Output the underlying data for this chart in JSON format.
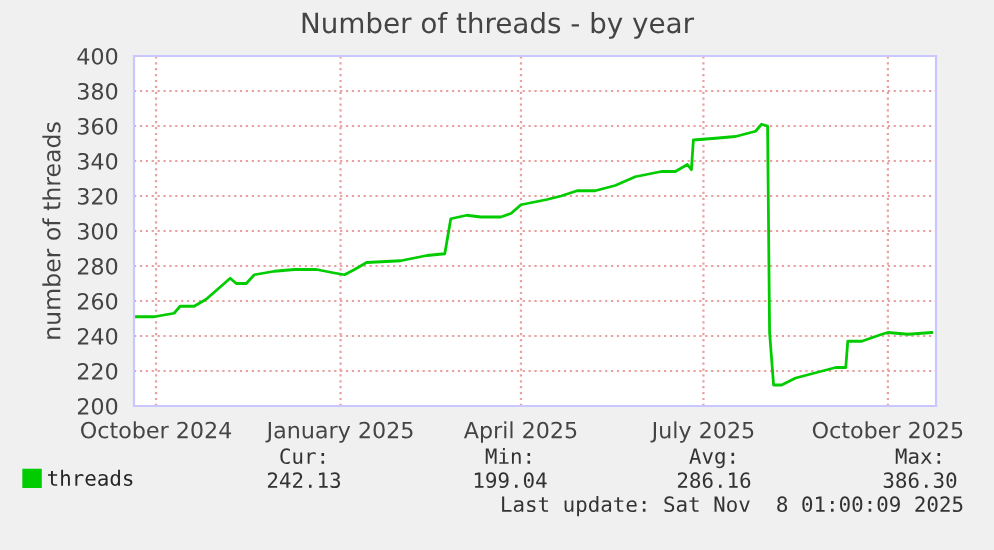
{
  "chart_data": {
    "type": "line",
    "title": "Number of threads - by year",
    "ylabel": "number of threads",
    "x": [
      "2024-10-04",
      "2024-10-14",
      "2024-10-24",
      "2024-10-27",
      "2024-11-03",
      "2024-11-06",
      "2024-11-09",
      "2024-11-13",
      "2024-11-16",
      "2024-11-19",
      "2024-11-21",
      "2024-11-24",
      "2024-11-29",
      "2024-12-03",
      "2024-12-08",
      "2024-12-13",
      "2024-12-23",
      "2025-01-03",
      "2025-01-12",
      "2025-01-17",
      "2025-01-22",
      "2025-01-28",
      "2025-02-14",
      "2025-02-27",
      "2025-03-08",
      "2025-03-11",
      "2025-03-19",
      "2025-03-26",
      "2025-04-05",
      "2025-04-10",
      "2025-04-15",
      "2025-04-28",
      "2025-05-05",
      "2025-05-13",
      "2025-05-22",
      "2025-06-01",
      "2025-06-11",
      "2025-06-24",
      "2025-07-01",
      "2025-07-07",
      "2025-07-09",
      "2025-07-10",
      "2025-07-21",
      "2025-07-31",
      "2025-08-10",
      "2025-08-13",
      "2025-08-16",
      "2025-08-17",
      "2025-08-19",
      "2025-08-23",
      "2025-08-30",
      "2025-09-09",
      "2025-09-19",
      "2025-09-24",
      "2025-09-25",
      "2025-10-02",
      "2025-10-12",
      "2025-10-15",
      "2025-10-25",
      "2025-11-06"
    ],
    "series": [
      {
        "name": "threads",
        "color": "#00cc00",
        "values": [
          251,
          251,
          253,
          257,
          257,
          259,
          261,
          265,
          268,
          271,
          273,
          270,
          270,
          275,
          276,
          277,
          278,
          278,
          276,
          275,
          278,
          282,
          283,
          286,
          287,
          307,
          309,
          308,
          308,
          310,
          315,
          318,
          320,
          323,
          323,
          326,
          331,
          334,
          334,
          338,
          335,
          352,
          353,
          354,
          357,
          361,
          360,
          242,
          212,
          212,
          216,
          219,
          222,
          222,
          237,
          237,
          241,
          242,
          241,
          242
        ]
      }
    ],
    "xlim": [
      "2024-10-04",
      "2025-11-08"
    ],
    "xticks": [
      {
        "value": "2024-10-15",
        "label": "October 2024"
      },
      {
        "value": "2025-01-15",
        "label": "January 2025"
      },
      {
        "value": "2025-04-15",
        "label": "April 2025"
      },
      {
        "value": "2025-07-15",
        "label": "July 2025"
      },
      {
        "value": "2025-10-15",
        "label": "October 2025"
      }
    ],
    "ylim": [
      200,
      400
    ],
    "yticks": [
      200,
      220,
      240,
      260,
      280,
      300,
      320,
      340,
      360,
      380,
      400
    ],
    "grid": true,
    "legend": "bottom",
    "marker": "none",
    "line_style": "solid",
    "annotations": [
      "Cur:",
      "Min:",
      "Avg:",
      "Max:",
      "242.13",
      "199.04",
      "286.16",
      "386.30",
      "Last update: Sat Nov  8 01:00:09 2025"
    ]
  }
}
